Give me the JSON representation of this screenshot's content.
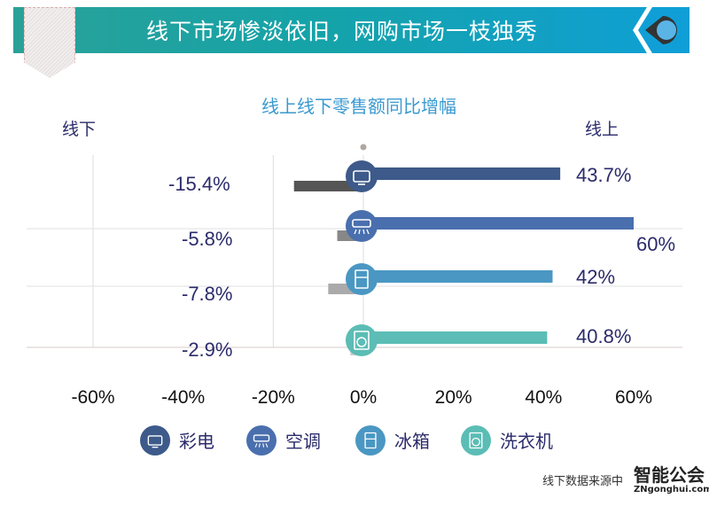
{
  "header": {
    "title": "线下市场惨淡依旧，网购市场一枝独秀"
  },
  "footer": {
    "source": "线下数据来源中",
    "logo_text": "智能公会",
    "logo_url_text": "ZNgonghui.com"
  },
  "chart_data": {
    "type": "bar",
    "title": "线上线下零售额同比增幅",
    "left_label": "线下",
    "right_label": "线上",
    "categories": [
      "彩电",
      "空调",
      "冰箱",
      "洗衣机"
    ],
    "icons": [
      "tv-icon",
      "air-conditioner-icon",
      "fridge-icon",
      "washing-machine-icon"
    ],
    "series": [
      {
        "name": "线上",
        "values": [
          43.7,
          60,
          42,
          40.8
        ],
        "labels": [
          "43.7%",
          "60%",
          "42%",
          "40.8%"
        ]
      },
      {
        "name": "线下",
        "values": [
          -15.4,
          -5.8,
          -7.8,
          -2.9
        ],
        "labels": [
          "-15.4%",
          "-5.8%",
          "-7.8%",
          "-2.9%"
        ]
      }
    ],
    "colors": [
      "#3d5a8a",
      "#4a6fae",
      "#4a97c3",
      "#5bbdb5"
    ],
    "offline_colors": [
      "#555555",
      "#888888",
      "#aaaaaa",
      "#cccccc"
    ],
    "xlim": [
      -60,
      60
    ],
    "xticks": [
      "-60%",
      "-40%",
      "-20%",
      "0%",
      "20%",
      "40%",
      "60%"
    ],
    "grid": true,
    "legend": "bottom"
  }
}
